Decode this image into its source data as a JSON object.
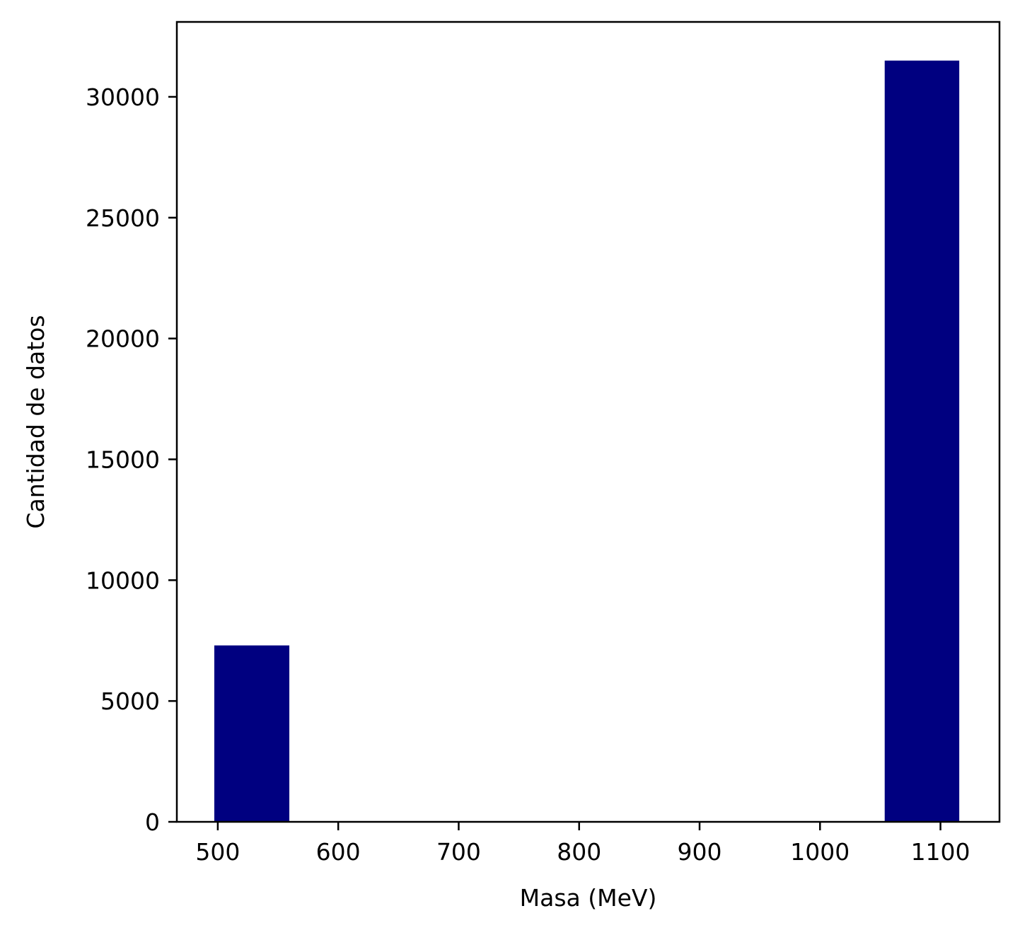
{
  "chart_data": {
    "type": "bar",
    "title": "",
    "xlabel": "Masa (MeV)",
    "ylabel": "Cantidad de datos",
    "xlim": [
      466,
      1149
    ],
    "ylim": [
      0,
      33100
    ],
    "xticks": [
      500,
      600,
      700,
      800,
      900,
      1000,
      1100
    ],
    "yticks": [
      0,
      5000,
      10000,
      15000,
      20000,
      25000,
      30000
    ],
    "bars": [
      {
        "x0": 497.1,
        "x1": 559.4,
        "value": 7300
      },
      {
        "x0": 1053.7,
        "x1": 1115.6,
        "value": 31500
      }
    ],
    "bar_color": "#000080",
    "grid": false,
    "legend": "none"
  }
}
